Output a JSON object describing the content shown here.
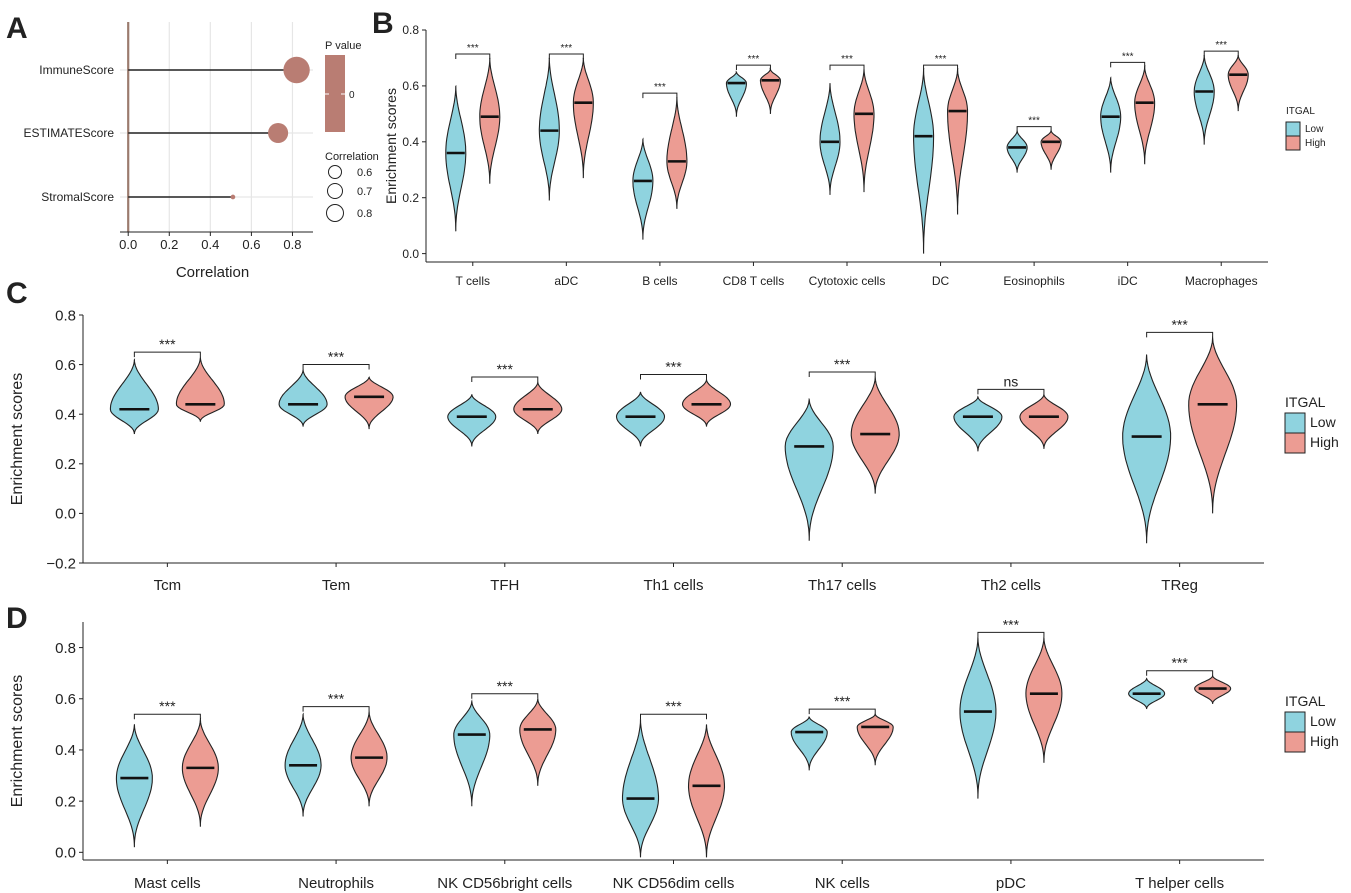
{
  "colors": {
    "low": "#8fd3df",
    "high": "#ec9c93",
    "lollipop": "#b97d73",
    "zero_line": "#9b7b6e"
  },
  "panels": [
    {
      "letter": "A"
    },
    {
      "letter": "B"
    },
    {
      "letter": "C"
    },
    {
      "letter": "D"
    }
  ],
  "chart_data": [
    {
      "panel": "A",
      "type": "scatter",
      "subtype": "lollipop",
      "categories": [
        "ImmuneScore",
        "ESTIMATEScore",
        "StromalScore"
      ],
      "values": [
        0.82,
        0.73,
        0.51
      ],
      "xlabel": "Correlation",
      "xticks": [
        "0.0",
        "0.2",
        "0.4",
        "0.6",
        "0.8"
      ],
      "xlim": [
        -0.04,
        0.9
      ],
      "grid": true,
      "legend": {
        "color_title": "P value",
        "color_tick": "0",
        "size_title": "Correlation",
        "size_labels": [
          "0.6",
          "0.7",
          "0.8"
        ],
        "placement": "right"
      }
    },
    {
      "panel": "B",
      "type": "violin",
      "ylabel": "Enrichment scores",
      "ylim": [
        -0.03,
        0.8
      ],
      "yticks": [
        "0.0",
        "0.2",
        "0.4",
        "0.6",
        "0.8"
      ],
      "legend": {
        "title": "ITGAL",
        "labels": [
          "Low",
          "High"
        ],
        "placement": "right"
      },
      "categories": [
        "T cells",
        "aDC",
        "B cells",
        "CD8 T cells",
        "Cytotoxic cells",
        "DC",
        "Eosinophils",
        "iDC",
        "Macrophages"
      ],
      "series": [
        {
          "name": "Low",
          "median": [
            0.36,
            0.44,
            0.26,
            0.61,
            0.4,
            0.42,
            0.38,
            0.49,
            0.58
          ],
          "min": [
            0.08,
            0.19,
            0.05,
            0.49,
            0.21,
            0.0,
            0.29,
            0.29,
            0.39
          ],
          "max": [
            0.6,
            0.7,
            0.41,
            0.65,
            0.61,
            0.66,
            0.44,
            0.63,
            0.71
          ]
        },
        {
          "name": "High",
          "median": [
            0.49,
            0.54,
            0.33,
            0.62,
            0.5,
            0.51,
            0.4,
            0.54,
            0.64
          ],
          "min": [
            0.25,
            0.27,
            0.16,
            0.5,
            0.22,
            0.14,
            0.3,
            0.32,
            0.51
          ],
          "max": [
            0.7,
            0.7,
            0.56,
            0.66,
            0.66,
            0.66,
            0.44,
            0.67,
            0.71
          ]
        }
      ],
      "significance": [
        "***",
        "***",
        "***",
        "***",
        "***",
        "***",
        "***",
        "***",
        "***"
      ]
    },
    {
      "panel": "C",
      "type": "violin",
      "ylabel": "Enrichment scores",
      "ylim": [
        -0.2,
        0.8
      ],
      "yticks": [
        "−0.2",
        "0.0",
        "0.2",
        "0.4",
        "0.6",
        "0.8"
      ],
      "legend": {
        "title": "ITGAL",
        "labels": [
          "Low",
          "High"
        ],
        "placement": "right"
      },
      "categories": [
        "Tcm",
        "Tem",
        "TFH",
        "Th1 cells",
        "Th17 cells",
        "Th2 cells",
        "TReg"
      ],
      "series": [
        {
          "name": "Low",
          "median": [
            0.42,
            0.44,
            0.39,
            0.39,
            0.27,
            0.39,
            0.31
          ],
          "min": [
            0.32,
            0.35,
            0.27,
            0.27,
            -0.11,
            0.25,
            -0.12
          ],
          "max": [
            0.62,
            0.58,
            0.48,
            0.49,
            0.46,
            0.47,
            0.64
          ]
        },
        {
          "name": "High",
          "median": [
            0.44,
            0.47,
            0.42,
            0.44,
            0.32,
            0.39,
            0.44
          ],
          "min": [
            0.37,
            0.34,
            0.32,
            0.35,
            0.08,
            0.26,
            0.0
          ],
          "max": [
            0.63,
            0.55,
            0.53,
            0.54,
            0.55,
            0.48,
            0.71
          ]
        }
      ],
      "significance": [
        "***",
        "***",
        "***",
        "***",
        "***",
        "ns",
        "***"
      ]
    },
    {
      "panel": "D",
      "type": "violin",
      "ylabel": "Enrichment scores",
      "ylim": [
        -0.03,
        0.9
      ],
      "yticks": [
        "0.0",
        "0.2",
        "0.4",
        "0.6",
        "0.8"
      ],
      "legend": {
        "title": "ITGAL",
        "labels": [
          "Low",
          "High"
        ],
        "placement": "right"
      },
      "categories": [
        "Mast cells",
        "Neutrophils",
        "NK CD56bright cells",
        "NK CD56dim cells",
        "NK cells",
        "pDC",
        "T helper cells"
      ],
      "series": [
        {
          "name": "Low",
          "median": [
            0.29,
            0.34,
            0.46,
            0.21,
            0.47,
            0.55,
            0.62
          ],
          "min": [
            0.02,
            0.14,
            0.18,
            -0.02,
            0.32,
            0.21,
            0.56
          ],
          "max": [
            0.5,
            0.54,
            0.59,
            0.52,
            0.53,
            0.84,
            0.68
          ]
        },
        {
          "name": "High",
          "median": [
            0.33,
            0.37,
            0.48,
            0.26,
            0.49,
            0.62,
            0.64
          ],
          "min": [
            0.1,
            0.18,
            0.26,
            -0.02,
            0.34,
            0.35,
            0.58
          ],
          "max": [
            0.52,
            0.55,
            0.6,
            0.5,
            0.54,
            0.84,
            0.69
          ]
        }
      ],
      "significance": [
        "***",
        "***",
        "***",
        "***",
        "***",
        "***",
        "***"
      ]
    }
  ]
}
